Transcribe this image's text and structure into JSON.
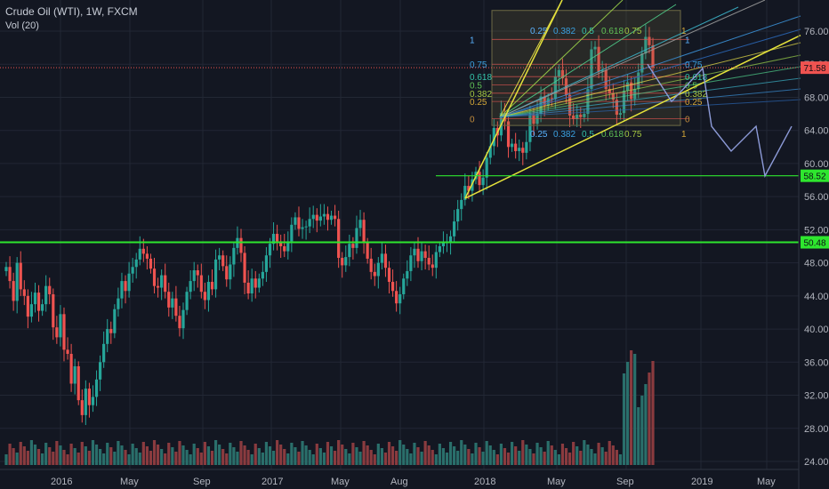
{
  "header": {
    "title": "Crude Oil (WTI), 1W, FXCM",
    "indicator": "Vol (20)"
  },
  "colors": {
    "background": "#131722",
    "grid": "#222734",
    "up": "#26a69a",
    "down": "#ef5350",
    "green_line": "#2ee62e",
    "yellow_line": "#e5e23b",
    "projection": "#8d9bd8",
    "price_badge": "#ef5350"
  },
  "chart_data": {
    "type": "candlestick",
    "instrument": "Crude Oil (WTI)",
    "timeframe": "1W",
    "source": "FXCM",
    "y_axis": {
      "ticks": [
        76,
        72,
        68,
        64,
        60,
        56,
        52,
        48,
        44,
        40,
        36,
        32,
        28,
        24
      ],
      "labels": [
        "76.00",
        "72.00",
        "68.00",
        "64.00",
        "60.00",
        "56.00",
        "52.00",
        "48.00",
        "44.00",
        "40.00",
        "36.00",
        "32.00",
        "28.00",
        "24.00"
      ],
      "range": [
        23.5,
        78.5
      ]
    },
    "x_axis": {
      "labels": [
        "2016",
        "May",
        "Sep",
        "2017",
        "May",
        "Aug",
        "2018",
        "May",
        "Sep",
        "2019",
        "May"
      ]
    },
    "price_badges": [
      {
        "value": "71.58",
        "color": "#ef5350"
      },
      {
        "value": "58.52",
        "color": "#2ee62e"
      },
      {
        "value": "50.48",
        "color": "#2ee62e"
      }
    ],
    "horizontal_levels": [
      {
        "value": 50.48,
        "label": "50.48"
      },
      {
        "value": 58.52,
        "label": "58.52"
      },
      {
        "value": 71.58,
        "label": "71.58"
      }
    ],
    "fib_levels_left": [
      "1",
      "0.75",
      "0.618",
      "0.5",
      "0.382",
      "0.25",
      "0"
    ],
    "fib_levels_right": [
      "1",
      "0.75",
      "0.618",
      "0.5",
      "0.382",
      "0.25",
      "0"
    ],
    "fib_top_labels": [
      "0.25",
      "0.382",
      "0.5",
      "0.618",
      "0.75",
      "1"
    ],
    "fib_bottom_labels": [
      "0.25",
      "0.382",
      "0.5",
      "0.618",
      "0.75",
      "1"
    ],
    "projection_path": [
      [
        66.5,
        "Sep 2018"
      ],
      [
        63.5,
        ""
      ],
      [
        61.5,
        ""
      ],
      [
        64.5,
        ""
      ],
      [
        58.5,
        "May 2019"
      ],
      [
        64.5,
        ""
      ]
    ],
    "closes": [
      47.5,
      45.8,
      43.4,
      48.0,
      44.8,
      44.0,
      41.5,
      43.0,
      44.4,
      42.2,
      43.0,
      45.2,
      44.2,
      40.2,
      39.0,
      41.8,
      37.5,
      37.0,
      33.4,
      35.5,
      31.4,
      29.6,
      32.8,
      30.8,
      31.8,
      33.9,
      36.0,
      38.2,
      40.0,
      39.5,
      42.4,
      43.7,
      45.8,
      44.6,
      46.7,
      47.5,
      48.4,
      49.7,
      49.1,
      48.5,
      47.3,
      45.2,
      45.0,
      46.5,
      44.5,
      42.6,
      43.7,
      41.6,
      40.1,
      42.3,
      44.5,
      45.8,
      47.1,
      46.5,
      44.5,
      43.5,
      45.7,
      44.8,
      48.4,
      48.9,
      47.6,
      46.0,
      47.8,
      49.8,
      51.0,
      49.2,
      45.6,
      44.3,
      46.1,
      45.0,
      46.1,
      46.9,
      48.9,
      50.3,
      51.5,
      50.6,
      50.0,
      49.4,
      50.6,
      52.6,
      53.5,
      52.1,
      52.3,
      52.4,
      53.3,
      53.8,
      53.1,
      53.6,
      53.9,
      53.2,
      53.7,
      53.3,
      48.6,
      47.7,
      48.7,
      50.3,
      49.8,
      52.2,
      53.2,
      50.4,
      48.5,
      46.9,
      46.4,
      48.0,
      49.1,
      47.4,
      45.7,
      44.6,
      43.1,
      44.2,
      46.1,
      47.0,
      48.9,
      49.7,
      48.2,
      49.4,
      48.6,
      47.8,
      47.4,
      49.3,
      50.0,
      50.5,
      50.5,
      51.2,
      53.0,
      54.5,
      55.6,
      57.3,
      56.7,
      58.1,
      59.0,
      57.4,
      58.3,
      60.7,
      62.1,
      64.3,
      63.4,
      66.1,
      65.1,
      62.0,
      62.4,
      61.5,
      61.9,
      61.3,
      62.6,
      65.9,
      64.8,
      66.0,
      68.1,
      67.0,
      67.9,
      67.8,
      70.5,
      71.3,
      70.3,
      68.3,
      65.8,
      65.4,
      65.9,
      65.6,
      66.0,
      69.0,
      73.8,
      74.1,
      71.1,
      71.3,
      69.0,
      68.5,
      67.7,
      65.9,
      66.1,
      68.8,
      69.8,
      67.8,
      69.0,
      71.0,
      73.3,
      75.3,
      74.3,
      71.6
    ],
    "volume_color_pattern": "up/down follows candle direction; spike near Sep 2018"
  }
}
